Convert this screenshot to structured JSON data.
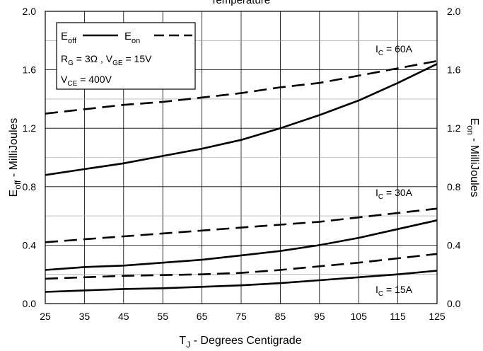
{
  "chart_data": {
    "type": "line",
    "title": "Temperature",
    "xlabel": "T_J - Degrees Centigrade",
    "xlabel_parts": {
      "main": "T",
      "sub": "J",
      "rest": " - Degrees Centigrade"
    },
    "ylabel_left": "E_off - MilliJoules",
    "ylabel_left_parts": {
      "main": "E",
      "sub": "off",
      "rest": " - MilliJoules"
    },
    "ylabel_right": "E_on - MilliJoules",
    "ylabel_right_parts": {
      "main": "E",
      "sub": "on",
      "rest": " - MilliJoules"
    },
    "xlim": [
      25,
      125
    ],
    "ylim": [
      0,
      2.0
    ],
    "x_ticks": [
      "25",
      "35",
      "45",
      "55",
      "65",
      "75",
      "85",
      "95",
      "105",
      "115",
      "125"
    ],
    "y_ticks": [
      "0.0",
      "0.4",
      "0.8",
      "1.2",
      "1.6",
      "2.0"
    ],
    "grid": true,
    "legend_position": "top-left",
    "legend": {
      "entries": [
        {
          "main": "E",
          "sub": "off",
          "style": "solid"
        },
        {
          "main": "E",
          "sub": "on",
          "style": "dashed"
        }
      ],
      "conditions": [
        [
          {
            "main": "R",
            "sub": "G",
            "rest": " = 3Ω ,  "
          },
          {
            "main": "V",
            "sub": "GE",
            "rest": " = 15V"
          }
        ],
        [
          {
            "main": "V",
            "sub": "CE",
            "rest": " = 400V"
          }
        ]
      ]
    },
    "annotations": [
      {
        "main": "I",
        "sub": "C",
        "rest": " = 60A"
      },
      {
        "main": "I",
        "sub": "C",
        "rest": " = 30A"
      },
      {
        "main": "I",
        "sub": "C",
        "rest": " = 15A"
      }
    ],
    "x": [
      25,
      35,
      45,
      55,
      65,
      75,
      85,
      95,
      105,
      115,
      125
    ],
    "series": [
      {
        "group": "60A",
        "kind": "Eoff",
        "style": "solid",
        "values": [
          0.88,
          0.92,
          0.96,
          1.01,
          1.06,
          1.12,
          1.2,
          1.29,
          1.39,
          1.51,
          1.64
        ]
      },
      {
        "group": "60A",
        "kind": "Eon",
        "style": "dashed",
        "values": [
          1.3,
          1.33,
          1.36,
          1.38,
          1.41,
          1.44,
          1.48,
          1.51,
          1.56,
          1.61,
          1.66
        ]
      },
      {
        "group": "30A",
        "kind": "Eoff",
        "style": "solid",
        "values": [
          0.23,
          0.25,
          0.26,
          0.28,
          0.3,
          0.33,
          0.36,
          0.4,
          0.45,
          0.51,
          0.57
        ]
      },
      {
        "group": "30A",
        "kind": "Eon",
        "style": "dashed",
        "values": [
          0.42,
          0.44,
          0.46,
          0.48,
          0.5,
          0.52,
          0.54,
          0.56,
          0.59,
          0.62,
          0.65
        ]
      },
      {
        "group": "15A",
        "kind": "Eoff",
        "style": "solid",
        "values": [
          0.08,
          0.09,
          0.1,
          0.105,
          0.115,
          0.125,
          0.14,
          0.16,
          0.18,
          0.2,
          0.225
        ]
      },
      {
        "group": "15A",
        "kind": "Eon",
        "style": "dashed",
        "values": [
          0.17,
          0.18,
          0.19,
          0.195,
          0.2,
          0.21,
          0.23,
          0.255,
          0.28,
          0.31,
          0.34
        ]
      }
    ]
  }
}
